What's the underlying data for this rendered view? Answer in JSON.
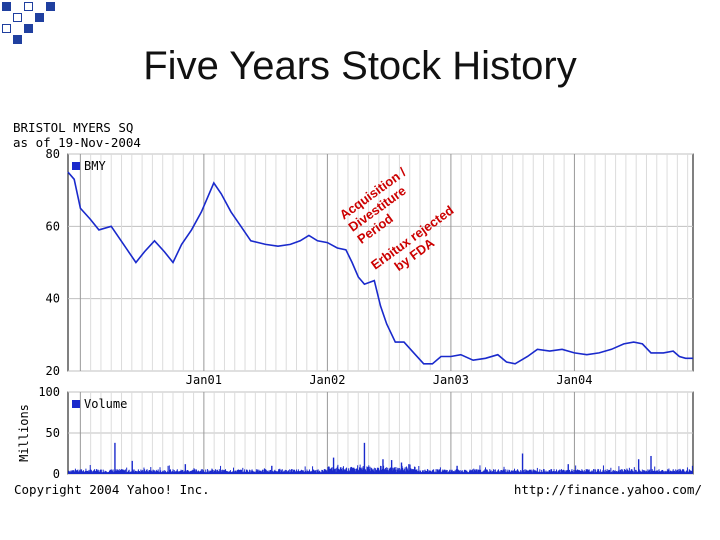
{
  "slide": {
    "title": "Five Years Stock History"
  },
  "chart_header": {
    "line1": "BRISTOL MYERS SQ",
    "line2": "as of 19-Nov-2004"
  },
  "footer": {
    "copyright": "Copyright 2004 Yahoo! Inc.",
    "url": "http://finance.yahoo.com/"
  },
  "colors": {
    "price_line": "#1a2acc",
    "volume_bars": "#1a2acc",
    "annotation": "#cc0000",
    "deco_blue": "#1f3f9f"
  },
  "chart_data": [
    {
      "type": "line",
      "legend": "BMY",
      "legend_position": "top-left",
      "grid": true,
      "ylim": [
        20,
        80
      ],
      "yticks": [
        20,
        40,
        60,
        80
      ],
      "xlim": [
        1999.9,
        2004.96
      ],
      "xtick_labels": [
        "Jan01",
        "Jan02",
        "Jan03",
        "Jan04"
      ],
      "series": [
        {
          "values": [
            [
              1999.9,
              75
            ],
            [
              1999.95,
              73
            ],
            [
              2000.0,
              65
            ],
            [
              2000.08,
              62
            ],
            [
              2000.15,
              59
            ],
            [
              2000.25,
              60
            ],
            [
              2000.35,
              55
            ],
            [
              2000.45,
              50
            ],
            [
              2000.52,
              53
            ],
            [
              2000.6,
              56
            ],
            [
              2000.68,
              53
            ],
            [
              2000.75,
              50
            ],
            [
              2000.82,
              55
            ],
            [
              2000.9,
              59
            ],
            [
              2000.98,
              64
            ],
            [
              2001.03,
              68
            ],
            [
              2001.08,
              72
            ],
            [
              2001.14,
              69
            ],
            [
              2001.22,
              64
            ],
            [
              2001.3,
              60
            ],
            [
              2001.38,
              56
            ],
            [
              2001.5,
              55
            ],
            [
              2001.6,
              54.5
            ],
            [
              2001.7,
              55
            ],
            [
              2001.78,
              56
            ],
            [
              2001.85,
              57.5
            ],
            [
              2001.92,
              56
            ],
            [
              2002.0,
              55.5
            ],
            [
              2002.08,
              54
            ],
            [
              2002.15,
              53.5
            ],
            [
              2002.2,
              50
            ],
            [
              2002.25,
              46
            ],
            [
              2002.3,
              44
            ],
            [
              2002.38,
              45
            ],
            [
              2002.43,
              38
            ],
            [
              2002.48,
              33
            ],
            [
              2002.55,
              28
            ],
            [
              2002.62,
              28
            ],
            [
              2002.7,
              25
            ],
            [
              2002.78,
              22
            ],
            [
              2002.85,
              22
            ],
            [
              2002.92,
              24
            ],
            [
              2003.0,
              24
            ],
            [
              2003.08,
              24.5
            ],
            [
              2003.18,
              23
            ],
            [
              2003.28,
              23.5
            ],
            [
              2003.38,
              24.5
            ],
            [
              2003.45,
              22.5
            ],
            [
              2003.52,
              22
            ],
            [
              2003.62,
              24
            ],
            [
              2003.7,
              26
            ],
            [
              2003.8,
              25.5
            ],
            [
              2003.9,
              26
            ],
            [
              2004.0,
              25
            ],
            [
              2004.1,
              24.5
            ],
            [
              2004.2,
              25
            ],
            [
              2004.3,
              26
            ],
            [
              2004.4,
              27.5
            ],
            [
              2004.48,
              28
            ],
            [
              2004.55,
              27.5
            ],
            [
              2004.62,
              25
            ],
            [
              2004.72,
              25
            ],
            [
              2004.8,
              25.5
            ],
            [
              2004.85,
              24
            ],
            [
              2004.9,
              23.5
            ],
            [
              2004.96,
              23.5
            ]
          ]
        }
      ],
      "annotations": [
        {
          "lines": [
            "Acquisition /",
            "Divestiture",
            "Period"
          ],
          "x": 2002.1
        },
        {
          "lines": [
            "Erbitux rejected",
            "by FDA"
          ],
          "x": 2002.5
        }
      ]
    },
    {
      "type": "bar",
      "legend": "Volume",
      "legend_position": "top-left",
      "ylabel": "Millions",
      "ylim": [
        0,
        100
      ],
      "yticks": [
        0,
        50,
        100
      ],
      "grid": true,
      "xlim": [
        1999.9,
        2004.96
      ],
      "spikes": [
        [
          2000.28,
          38
        ],
        [
          2002.3,
          38
        ],
        [
          2003.58,
          25
        ],
        [
          2004.52,
          18
        ],
        [
          2004.62,
          22
        ],
        [
          2000.42,
          16
        ],
        [
          2000.85,
          12
        ],
        [
          2001.55,
          10
        ],
        [
          2002.05,
          20
        ],
        [
          2002.45,
          18
        ],
        [
          2002.52,
          17
        ],
        [
          2002.6,
          14
        ],
        [
          2002.66,
          12
        ],
        [
          2003.05,
          10
        ],
        [
          2003.95,
          12
        ]
      ]
    }
  ]
}
